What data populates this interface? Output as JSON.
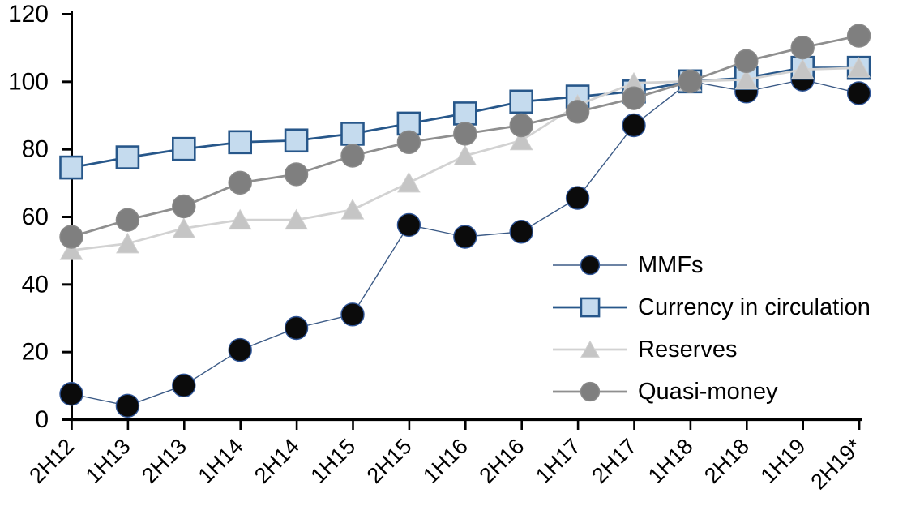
{
  "chart_data": {
    "type": "line",
    "title": "",
    "categories": [
      "2H12",
      "1H13",
      "2H13",
      "1H14",
      "2H14",
      "1H15",
      "2H15",
      "1H16",
      "2H16",
      "1H17",
      "2H17",
      "1H18",
      "2H18",
      "1H19",
      "2H19*"
    ],
    "yticks": [
      0,
      20,
      40,
      60,
      80,
      100,
      120
    ],
    "ylim": [
      0,
      120
    ],
    "grid": false,
    "legend_position": "center-right",
    "axis_color": "#000000",
    "background_color": "#ffffff",
    "series": [
      {
        "name": "MMFs",
        "marker": "circle",
        "marker_fill": "#0b0b0b",
        "marker_stroke": "#2f5597",
        "line_color": "#3b5a86",
        "line_width": 1.4,
        "values": [
          7.5,
          4,
          10,
          20.5,
          27,
          31,
          57.5,
          54,
          55.5,
          65.5,
          87,
          100,
          97,
          100.5,
          96.5
        ]
      },
      {
        "name": "Currency in circulation",
        "marker": "square",
        "marker_fill": "#c5dbee",
        "marker_stroke": "#27578a",
        "line_color": "#27578a",
        "line_width": 2.8,
        "values": [
          74.5,
          77.5,
          80,
          82,
          82.5,
          84.5,
          87.5,
          90.5,
          94,
          95.5,
          97,
          100,
          101,
          104,
          104
        ]
      },
      {
        "name": "Reserves",
        "marker": "triangle",
        "marker_fill": "#c5c5c5",
        "marker_stroke": "#d0d0d0",
        "line_color": "#d2d2d2",
        "line_width": 2.8,
        "values": [
          50,
          52,
          56.5,
          59,
          59,
          62,
          70,
          78,
          82.5,
          93,
          99.5,
          100,
          100.5,
          103.5,
          104
        ]
      },
      {
        "name": "Quasi-money",
        "marker": "circle",
        "marker_fill": "#7f7f7f",
        "marker_stroke": "#8a8a8a",
        "line_color": "#8f8f8f",
        "line_width": 2.8,
        "values": [
          54,
          59,
          63,
          70,
          72.5,
          78,
          82,
          84.5,
          87,
          91,
          95,
          100,
          106,
          110,
          113.5
        ]
      }
    ]
  }
}
